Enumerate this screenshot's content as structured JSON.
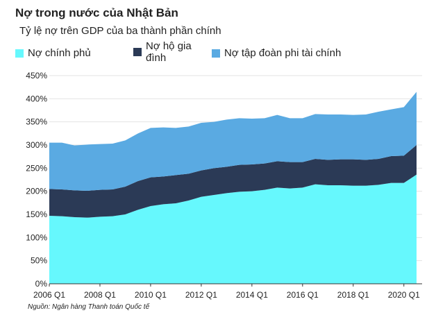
{
  "chart_data": {
    "type": "stacked_area",
    "title": "Nợ trong nước của Nhật Bản",
    "subtitle": "Tỷ lệ nợ trên GDP của ba thành phần chính",
    "source": "Nguồn: Ngân hàng Thanh toán Quốc tế",
    "categories": [
      "2006 Q1",
      null,
      null,
      null,
      "2008 Q1",
      null,
      null,
      null,
      "2010 Q1",
      null,
      null,
      null,
      "2012 Q1",
      null,
      null,
      null,
      "2014 Q1",
      null,
      null,
      null,
      "2016 Q1",
      null,
      null,
      null,
      "2018 Q1",
      null,
      null,
      null,
      "2020 Q1",
      null
    ],
    "series": [
      {
        "name": "Nợ chính phủ",
        "color": "#66f8fd",
        "values": [
          147,
          146,
          144,
          143,
          145,
          146,
          150,
          160,
          168,
          172,
          174,
          180,
          188,
          192,
          196,
          199,
          200,
          203,
          208,
          206,
          208,
          215,
          213,
          213,
          212,
          212,
          214,
          218,
          218,
          236
        ]
      },
      {
        "name": "Nợ hộ gia đình",
        "color": "#2b3a56",
        "values": [
          58,
          58,
          58,
          58,
          58,
          58,
          60,
          62,
          62,
          60,
          61,
          58,
          57,
          58,
          57,
          58,
          58,
          57,
          57,
          57,
          55,
          55,
          55,
          56,
          57,
          56,
          56,
          58,
          59,
          64
        ]
      },
      {
        "name": "Nợ tập đoàn phi tài chính",
        "color": "#5aaae2",
        "values": [
          100,
          101,
          97,
          100,
          99,
          99,
          100,
          103,
          107,
          106,
          102,
          102,
          103,
          100,
          102,
          101,
          99,
          98,
          100,
          95,
          95,
          97,
          98,
          97,
          96,
          98,
          102,
          101,
          105,
          115
        ]
      }
    ],
    "ylim": [
      0,
      450
    ],
    "yticks": [
      {
        "value": 0,
        "label": "0%"
      },
      {
        "value": 50,
        "label": "50%"
      },
      {
        "value": 100,
        "label": "100%"
      },
      {
        "value": 150,
        "label": "150%"
      },
      {
        "value": 200,
        "label": "200%"
      },
      {
        "value": 250,
        "label": "250%"
      },
      {
        "value": 300,
        "label": "300%"
      },
      {
        "value": 350,
        "label": "350%"
      },
      {
        "value": 400,
        "label": "400%"
      },
      {
        "value": 450,
        "label": "450%"
      }
    ],
    "grid": true
  }
}
